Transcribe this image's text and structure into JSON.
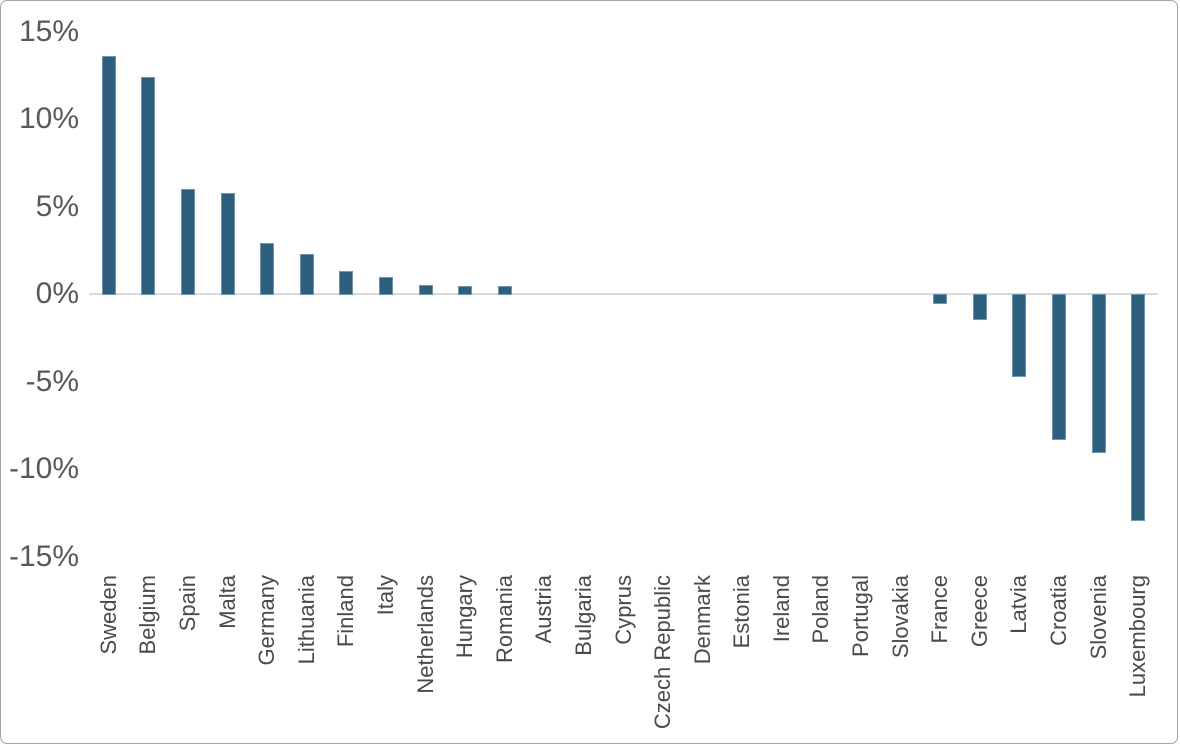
{
  "chart_data": {
    "type": "bar",
    "title": "",
    "xlabel": "",
    "ylabel": "",
    "legend": "none",
    "grid": "zero-line-only",
    "categories": [
      "Sweden",
      "Belgium",
      "Spain",
      "Malta",
      "Germany",
      "Lithuania",
      "Finland",
      "Italy",
      "Netherlands",
      "Hungary",
      "Romania",
      "Austria",
      "Bulgaria",
      "Cyprus",
      "Czech Republic",
      "Denmark",
      "Estonia",
      "Ireland",
      "Poland",
      "Portugal",
      "Slovakia",
      "France",
      "Greece",
      "Latvia",
      "Croatia",
      "Slovenia",
      "Luxembourg"
    ],
    "values": [
      13.6,
      12.4,
      6.0,
      5.8,
      2.9,
      2.3,
      1.3,
      1.0,
      0.5,
      0.45,
      0.45,
      0,
      0,
      0,
      0,
      0,
      0,
      0,
      0,
      0,
      0,
      -0.5,
      -1.45,
      -4.7,
      -8.3,
      -9.0,
      -12.9
    ],
    "value_unit": "%",
    "y_ticks": [
      "15%",
      "10%",
      "5%",
      "0%",
      "-5%",
      "-10%",
      "-15%"
    ],
    "y_tick_values": [
      15,
      10,
      5,
      0,
      -5,
      -10,
      -15
    ],
    "ylim": [
      -15,
      15
    ],
    "bar_color": "#2E5F7E",
    "gridline_color": "#D9D9D9",
    "axis_tick_label_color": "#595959",
    "category_label_color": "#4A4A4A",
    "frame_border_color": "#A6A6A6",
    "background_color": "#FFFFFF"
  }
}
